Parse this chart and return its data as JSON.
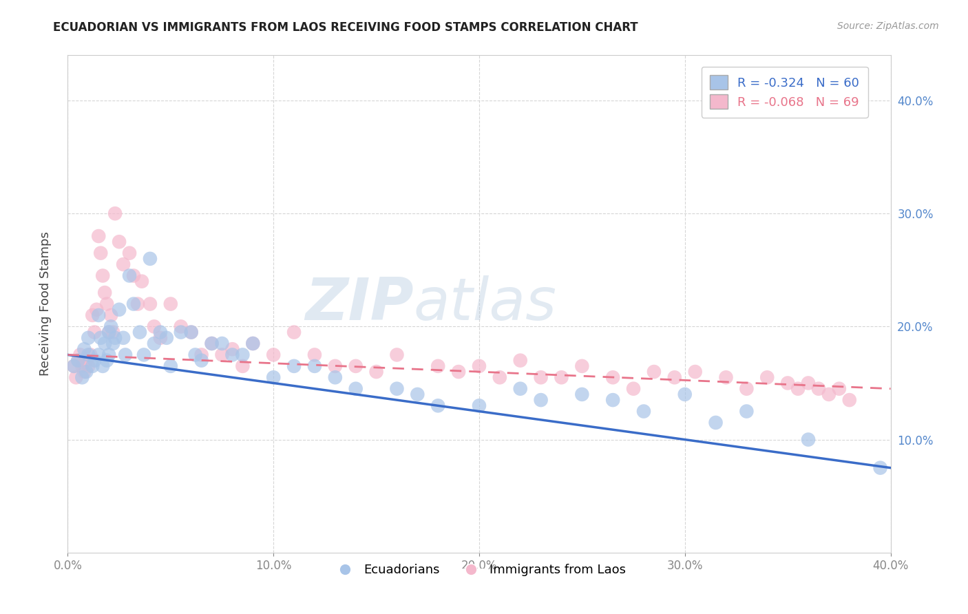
{
  "title": "ECUADORIAN VS IMMIGRANTS FROM LAOS RECEIVING FOOD STAMPS CORRELATION CHART",
  "source_text": "Source: ZipAtlas.com",
  "ylabel": "Receiving Food Stamps",
  "legend_label_blue": "Ecuadorians",
  "legend_label_pink": "Immigrants from Laos",
  "watermark_zip": "ZIP",
  "watermark_atlas": "atlas",
  "r_blue": -0.324,
  "n_blue": 60,
  "r_pink": -0.068,
  "n_pink": 69,
  "xmin": 0.0,
  "xmax": 0.4,
  "ymin": 0.0,
  "ymax": 0.44,
  "blue_color": "#A8C4E8",
  "pink_color": "#F4B8CC",
  "blue_line_color": "#3A6CC8",
  "pink_line_color": "#E8748A",
  "background_color": "#FFFFFF",
  "grid_color": "#CCCCCC",
  "title_color": "#222222",
  "ytick_color": "#5588CC",
  "xtick_color": "#888888",
  "blue_scatter_x": [
    0.003,
    0.005,
    0.007,
    0.008,
    0.009,
    0.01,
    0.01,
    0.012,
    0.013,
    0.015,
    0.015,
    0.016,
    0.017,
    0.018,
    0.019,
    0.02,
    0.02,
    0.021,
    0.022,
    0.023,
    0.025,
    0.027,
    0.028,
    0.03,
    0.032,
    0.035,
    0.037,
    0.04,
    0.042,
    0.045,
    0.048,
    0.05,
    0.055,
    0.06,
    0.062,
    0.065,
    0.07,
    0.075,
    0.08,
    0.085,
    0.09,
    0.1,
    0.11,
    0.12,
    0.13,
    0.14,
    0.16,
    0.17,
    0.18,
    0.2,
    0.22,
    0.23,
    0.25,
    0.265,
    0.28,
    0.3,
    0.315,
    0.33,
    0.36,
    0.395
  ],
  "blue_scatter_y": [
    0.165,
    0.17,
    0.155,
    0.18,
    0.16,
    0.175,
    0.19,
    0.165,
    0.17,
    0.21,
    0.175,
    0.19,
    0.165,
    0.185,
    0.17,
    0.195,
    0.175,
    0.2,
    0.185,
    0.19,
    0.215,
    0.19,
    0.175,
    0.245,
    0.22,
    0.195,
    0.175,
    0.26,
    0.185,
    0.195,
    0.19,
    0.165,
    0.195,
    0.195,
    0.175,
    0.17,
    0.185,
    0.185,
    0.175,
    0.175,
    0.185,
    0.155,
    0.165,
    0.165,
    0.155,
    0.145,
    0.145,
    0.14,
    0.13,
    0.13,
    0.145,
    0.135,
    0.14,
    0.135,
    0.125,
    0.14,
    0.115,
    0.125,
    0.1,
    0.075
  ],
  "pink_scatter_x": [
    0.003,
    0.004,
    0.005,
    0.006,
    0.007,
    0.008,
    0.009,
    0.01,
    0.011,
    0.012,
    0.013,
    0.014,
    0.015,
    0.016,
    0.017,
    0.018,
    0.019,
    0.02,
    0.021,
    0.022,
    0.023,
    0.025,
    0.027,
    0.03,
    0.032,
    0.034,
    0.036,
    0.04,
    0.042,
    0.045,
    0.05,
    0.055,
    0.06,
    0.065,
    0.07,
    0.075,
    0.08,
    0.085,
    0.09,
    0.1,
    0.11,
    0.12,
    0.13,
    0.14,
    0.15,
    0.16,
    0.18,
    0.19,
    0.2,
    0.21,
    0.22,
    0.23,
    0.24,
    0.25,
    0.265,
    0.275,
    0.285,
    0.295,
    0.305,
    0.32,
    0.33,
    0.34,
    0.35,
    0.355,
    0.36,
    0.365,
    0.37,
    0.375,
    0.38
  ],
  "pink_scatter_y": [
    0.165,
    0.155,
    0.17,
    0.175,
    0.165,
    0.16,
    0.17,
    0.165,
    0.175,
    0.21,
    0.195,
    0.215,
    0.28,
    0.265,
    0.245,
    0.23,
    0.22,
    0.195,
    0.21,
    0.195,
    0.3,
    0.275,
    0.255,
    0.265,
    0.245,
    0.22,
    0.24,
    0.22,
    0.2,
    0.19,
    0.22,
    0.2,
    0.195,
    0.175,
    0.185,
    0.175,
    0.18,
    0.165,
    0.185,
    0.175,
    0.195,
    0.175,
    0.165,
    0.165,
    0.16,
    0.175,
    0.165,
    0.16,
    0.165,
    0.155,
    0.17,
    0.155,
    0.155,
    0.165,
    0.155,
    0.145,
    0.16,
    0.155,
    0.16,
    0.155,
    0.145,
    0.155,
    0.15,
    0.145,
    0.15,
    0.145,
    0.14,
    0.145,
    0.135
  ],
  "blue_line_x0": 0.0,
  "blue_line_x1": 0.4,
  "blue_line_y0": 0.175,
  "blue_line_y1": 0.075,
  "pink_line_x0": 0.0,
  "pink_line_x1": 0.4,
  "pink_line_y0": 0.175,
  "pink_line_y1": 0.145
}
